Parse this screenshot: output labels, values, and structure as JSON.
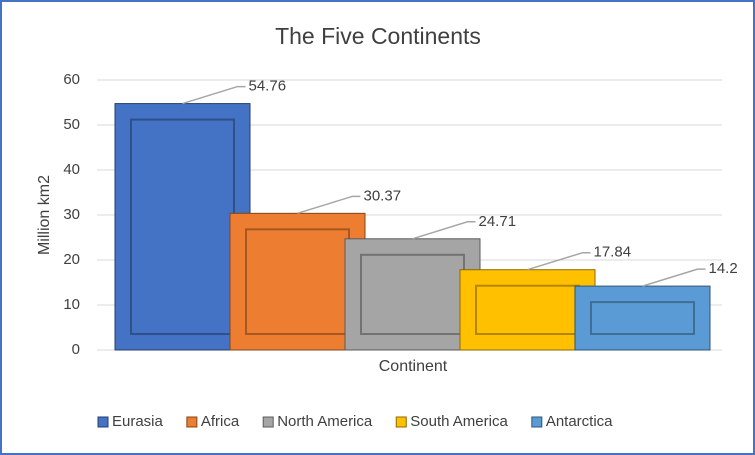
{
  "chart_data": {
    "type": "bar",
    "title": "The Five Continents",
    "x_label": "Continent",
    "y_label": "Million km2",
    "categories": [
      "Continent"
    ],
    "series": [
      {
        "name": "Eurasia",
        "color": "#4472c4",
        "values": [
          54.76
        ]
      },
      {
        "name": "Africa",
        "color": "#ed7d31",
        "values": [
          30.37
        ]
      },
      {
        "name": "North America",
        "color": "#a5a5a5",
        "values": [
          24.71
        ]
      },
      {
        "name": "South America",
        "color": "#ffc000",
        "values": [
          17.84
        ]
      },
      {
        "name": "Antarctica",
        "color": "#5b9bd5",
        "values": [
          14.2
        ]
      }
    ],
    "ylim": [
      0,
      60
    ],
    "yticks": [
      0,
      10,
      20,
      30,
      40,
      50,
      60
    ],
    "grid": true,
    "legend": "bottom"
  }
}
